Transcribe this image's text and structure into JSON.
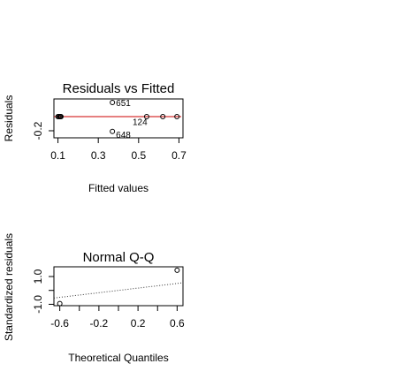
{
  "chart_data": [
    {
      "id": "resid",
      "type": "scatter",
      "title": "Residuals vs Fitted",
      "xlabel": "Fitted values",
      "ylabel": "Residuals",
      "xlim": [
        0.08,
        0.72
      ],
      "ylim": [
        -0.3,
        0.25
      ],
      "x_ticks": [
        0.1,
        0.3,
        0.5,
        0.7
      ],
      "x_tick_labels": [
        "0.1",
        "0.3",
        "0.5",
        "0.7"
      ],
      "y_ticks": [
        -0.2
      ],
      "y_tick_labels": [
        "-0.2"
      ],
      "points": [
        {
          "x": 0.1,
          "y": 0.0
        },
        {
          "x": 0.105,
          "y": 0.0
        },
        {
          "x": 0.11,
          "y": 0.0
        },
        {
          "x": 0.112,
          "y": 0.0
        },
        {
          "x": 0.115,
          "y": 0.0
        },
        {
          "x": 0.37,
          "y": 0.2,
          "label": "651"
        },
        {
          "x": 0.37,
          "y": -0.21,
          "label": "648"
        },
        {
          "x": 0.54,
          "y": 0.0
        },
        {
          "x": 0.62,
          "y": 0.0
        },
        {
          "x": 0.69,
          "y": 0.0
        }
      ],
      "point_labels": [
        {
          "text": "124",
          "x": 0.47,
          "y": -0.07
        }
      ],
      "reference_line": {
        "style": "dashed",
        "color": "#cc0000",
        "y": 0.0
      },
      "smooth_line": {
        "color": "#cc0000",
        "x": [
          0.1,
          0.7
        ],
        "y": [
          0.0,
          0.0
        ]
      }
    },
    {
      "id": "qq",
      "type": "scatter",
      "title": "Normal Q-Q",
      "xlabel": "Theoretical Quantiles",
      "ylabel": "Standardized residuals",
      "xlim": [
        -0.66,
        0.66
      ],
      "ylim": [
        -1.1,
        1.7
      ],
      "x_ticks": [
        -0.6,
        -0.4,
        -0.2,
        0.0,
        0.2,
        0.4,
        0.6
      ],
      "x_tick_labels": [
        "-0.6",
        "",
        "-0.2",
        "",
        "0.2",
        "",
        "0.6"
      ],
      "y_ticks": [
        -1.0,
        0.0,
        1.0
      ],
      "y_tick_labels": [
        "-1.0",
        "",
        "1.0"
      ],
      "points": [
        {
          "x": -0.6,
          "y": -0.95
        },
        {
          "x": 0.6,
          "y": 1.45
        }
      ],
      "reference_line": {
        "style": "dotted",
        "color": "#333333",
        "x": [
          -0.66,
          0.66
        ],
        "y": [
          -0.55,
          0.55
        ]
      }
    }
  ]
}
